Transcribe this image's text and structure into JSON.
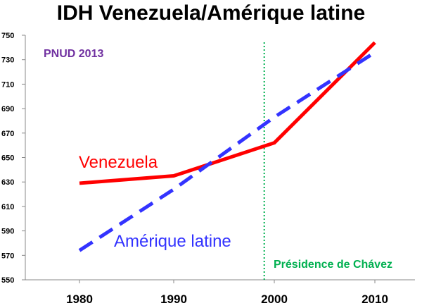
{
  "chart_data": {
    "type": "line",
    "title": "IDH Venezuela/Amérique latine",
    "x": [
      1980,
      1990,
      2000,
      2010
    ],
    "x_tick_labels": [
      "1980",
      "1990",
      "2000",
      "2010"
    ],
    "ylim": [
      550,
      750
    ],
    "y_ticks": [
      550,
      570,
      590,
      610,
      630,
      650,
      670,
      690,
      710,
      730,
      750
    ],
    "series": [
      {
        "name": "Venezuela",
        "color": "#ff0000",
        "style": "solid",
        "x": [
          1980,
          1990,
          2000,
          2010
        ],
        "y": [
          629,
          635,
          662,
          744
        ]
      },
      {
        "name": "Amérique latine",
        "color": "#3333ff",
        "style": "dashed",
        "x": [
          1980,
          1990,
          2000,
          2010
        ],
        "y": [
          574,
          624,
          683,
          736
        ]
      }
    ],
    "annotations": [
      {
        "text": "PNUD 2013",
        "color": "#7030a0"
      },
      {
        "text": "Présidence de Chávez",
        "color": "#00b050",
        "vline_x": 1999
      }
    ],
    "grid": false,
    "legend": "inline labels"
  }
}
